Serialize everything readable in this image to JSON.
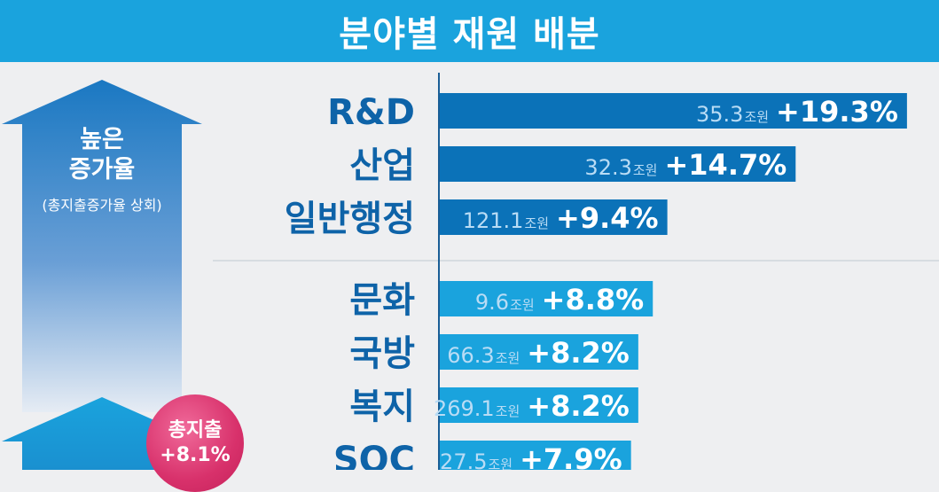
{
  "header": {
    "title": "분야별 재원 배분"
  },
  "left_panel": {
    "arrow_title_line1": "높은",
    "arrow_title_line2": "증가율",
    "arrow_subtitle": "(총지출증가율 상회)",
    "badge_label": "총지출",
    "badge_value": "+8.1%"
  },
  "colors": {
    "header": "#1aa3dd",
    "bar_dark": "#0b72b8",
    "bar_light": "#1aa3dd",
    "category_text": "#0e63a8",
    "badge": "#d8316b"
  },
  "chart_data": {
    "type": "bar",
    "orientation": "horizontal",
    "title": "분야별 재원 배분",
    "value_unit": "%",
    "categories": [
      "R&D",
      "산업",
      "일반행정",
      "문화",
      "국방",
      "복지",
      "SOC"
    ],
    "values": [
      19.3,
      14.7,
      9.4,
      8.8,
      8.2,
      8.2,
      7.9
    ],
    "value_labels": [
      "+19.3%",
      "+14.7%",
      "+9.4%",
      "+8.8%",
      "+8.2%",
      "+8.2%",
      "+7.9%"
    ],
    "amounts": [
      "35.3",
      "32.3",
      "121.1",
      "9.6",
      "66.3",
      "269.1",
      "27.5"
    ],
    "amount_unit": "조원",
    "groups": [
      "high",
      "high",
      "high",
      "low",
      "low",
      "low",
      "low"
    ]
  }
}
